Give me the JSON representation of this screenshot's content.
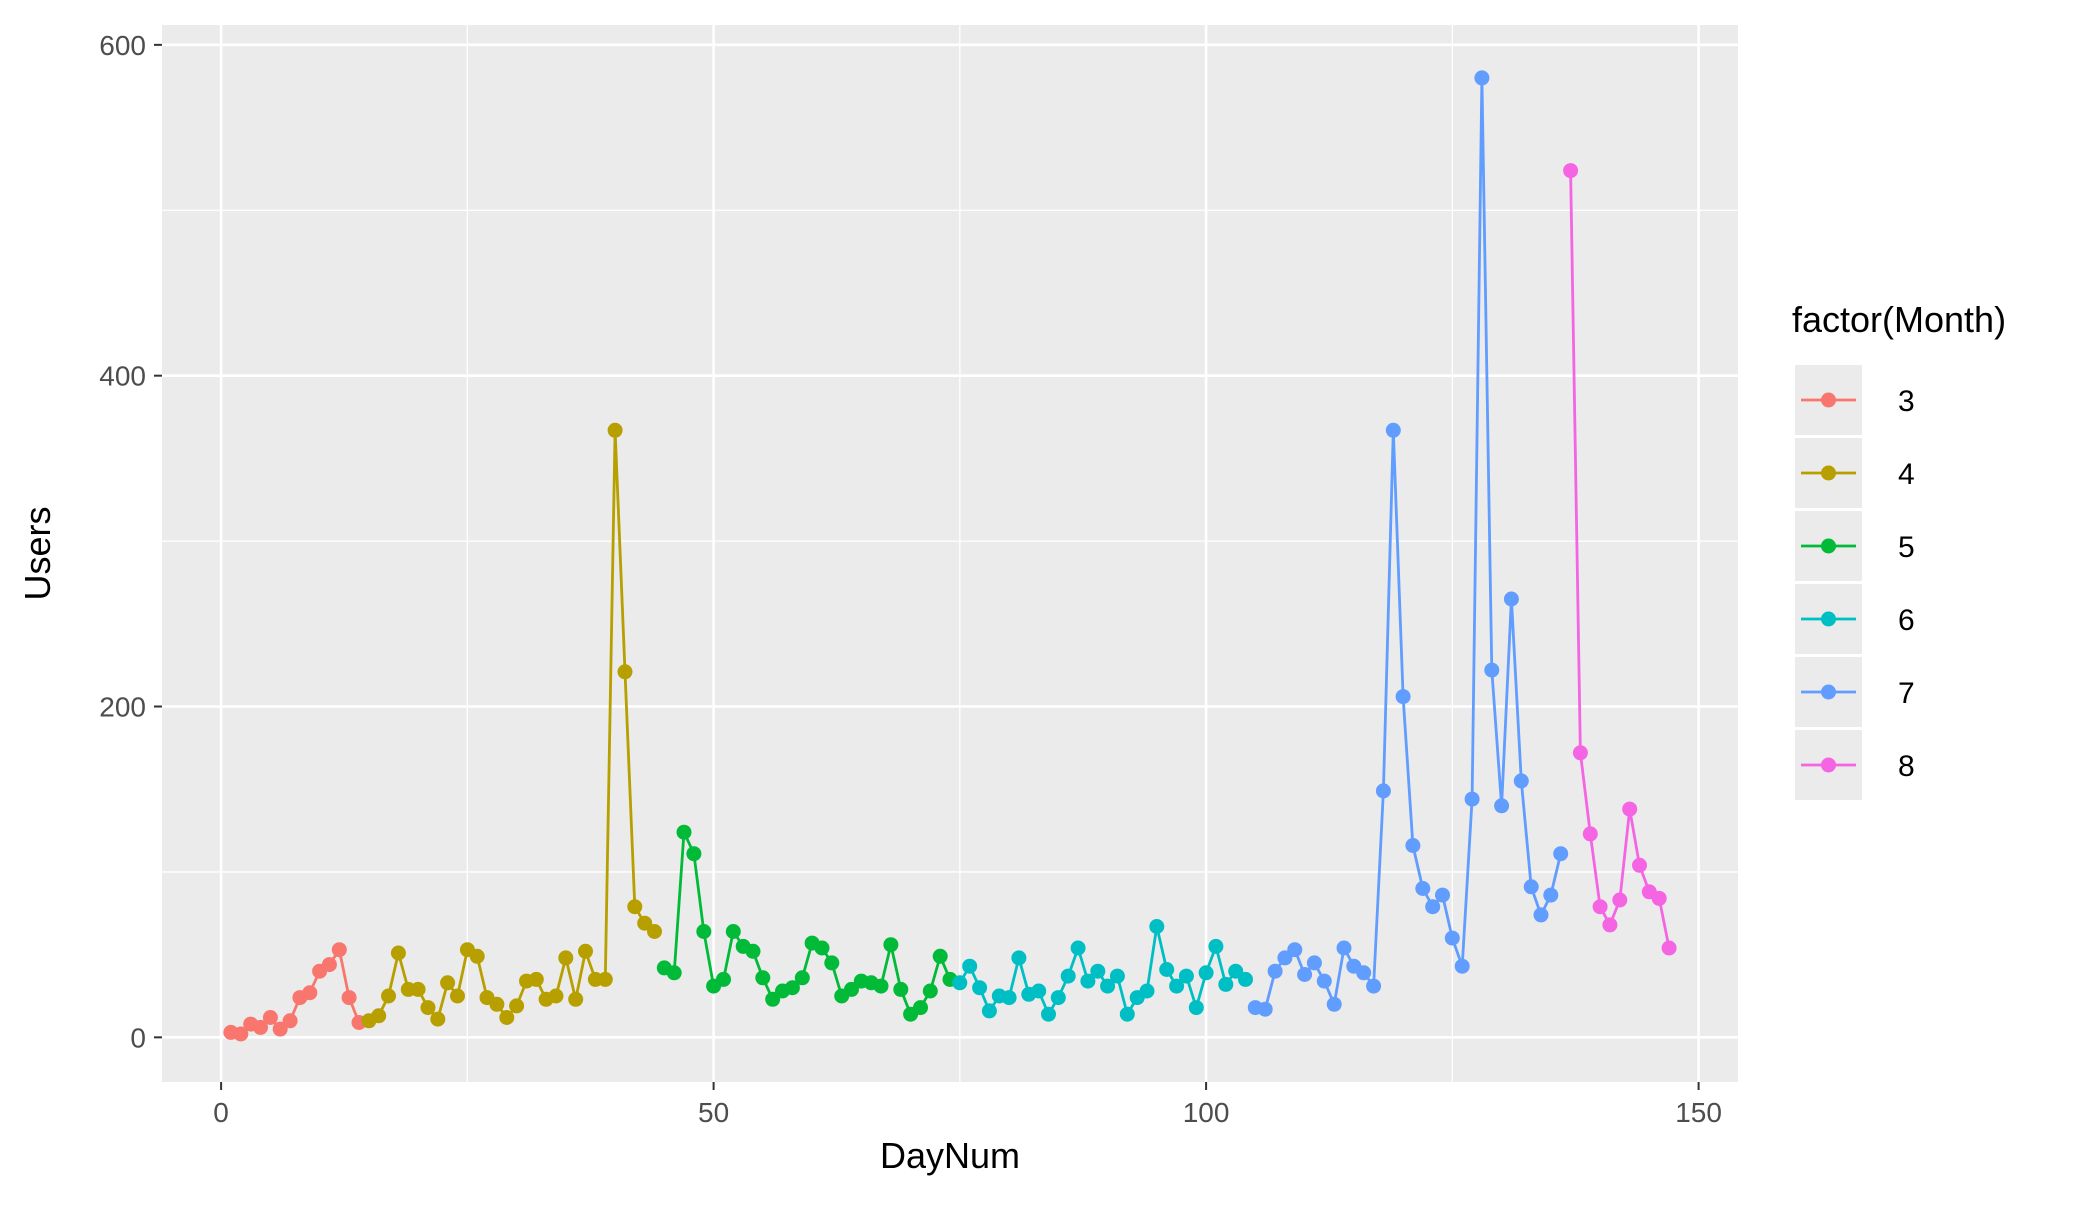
{
  "chart_data": {
    "type": "line",
    "xlabel": "DayNum",
    "ylabel": "Users",
    "xlim": [
      -6,
      154
    ],
    "ylim": [
      -27,
      612
    ],
    "x_ticks": [
      0,
      50,
      100,
      150
    ],
    "y_ticks": [
      0,
      200,
      400,
      600
    ],
    "grid": true,
    "background": "#ebebeb",
    "legend": {
      "title": "factor(Month)",
      "position": "right"
    },
    "series": [
      {
        "name": "3",
        "color": "#F8766D",
        "points": [
          [
            1,
            3
          ],
          [
            2,
            2
          ],
          [
            3,
            8
          ],
          [
            4,
            6
          ],
          [
            5,
            12
          ],
          [
            6,
            5
          ],
          [
            7,
            10
          ],
          [
            8,
            24
          ],
          [
            9,
            27
          ],
          [
            10,
            40
          ],
          [
            11,
            44
          ],
          [
            12,
            53
          ],
          [
            13,
            24
          ],
          [
            14,
            9
          ]
        ]
      },
      {
        "name": "4",
        "color": "#B79F00",
        "points": [
          [
            15,
            10
          ],
          [
            16,
            13
          ],
          [
            17,
            25
          ],
          [
            18,
            51
          ],
          [
            19,
            29
          ],
          [
            20,
            29
          ],
          [
            21,
            18
          ],
          [
            22,
            11
          ],
          [
            23,
            33
          ],
          [
            24,
            25
          ],
          [
            25,
            53
          ],
          [
            26,
            49
          ],
          [
            27,
            24
          ],
          [
            28,
            20
          ],
          [
            29,
            12
          ],
          [
            30,
            19
          ],
          [
            31,
            34
          ],
          [
            32,
            35
          ],
          [
            33,
            23
          ],
          [
            34,
            25
          ],
          [
            35,
            48
          ],
          [
            36,
            23
          ],
          [
            37,
            52
          ],
          [
            38,
            35
          ],
          [
            39,
            35
          ],
          [
            40,
            367
          ],
          [
            41,
            221
          ],
          [
            42,
            79
          ],
          [
            43,
            69
          ],
          [
            44,
            64
          ]
        ]
      },
      {
        "name": "5",
        "color": "#00BA38",
        "points": [
          [
            45,
            42
          ],
          [
            46,
            39
          ],
          [
            47,
            124
          ],
          [
            48,
            111
          ],
          [
            49,
            64
          ],
          [
            50,
            31
          ],
          [
            51,
            35
          ],
          [
            52,
            64
          ],
          [
            53,
            55
          ],
          [
            54,
            52
          ],
          [
            55,
            36
          ],
          [
            56,
            23
          ],
          [
            57,
            28
          ],
          [
            58,
            30
          ],
          [
            59,
            36
          ],
          [
            60,
            57
          ],
          [
            61,
            54
          ],
          [
            62,
            45
          ],
          [
            63,
            25
          ],
          [
            64,
            29
          ],
          [
            65,
            34
          ],
          [
            66,
            33
          ],
          [
            67,
            31
          ],
          [
            68,
            56
          ],
          [
            69,
            29
          ],
          [
            70,
            14
          ],
          [
            71,
            18
          ],
          [
            72,
            28
          ],
          [
            73,
            49
          ],
          [
            74,
            35
          ]
        ]
      },
      {
        "name": "6",
        "color": "#00BFC4",
        "points": [
          [
            75,
            33
          ],
          [
            76,
            43
          ],
          [
            77,
            30
          ],
          [
            78,
            16
          ],
          [
            79,
            25
          ],
          [
            80,
            24
          ],
          [
            81,
            48
          ],
          [
            82,
            26
          ],
          [
            83,
            28
          ],
          [
            84,
            14
          ],
          [
            85,
            24
          ],
          [
            86,
            37
          ],
          [
            87,
            54
          ],
          [
            88,
            34
          ],
          [
            89,
            40
          ],
          [
            90,
            31
          ],
          [
            91,
            37
          ],
          [
            92,
            14
          ],
          [
            93,
            24
          ],
          [
            94,
            28
          ],
          [
            95,
            67
          ],
          [
            96,
            41
          ],
          [
            97,
            31
          ],
          [
            98,
            37
          ],
          [
            99,
            18
          ],
          [
            100,
            39
          ],
          [
            101,
            55
          ],
          [
            102,
            32
          ],
          [
            103,
            40
          ],
          [
            104,
            35
          ]
        ]
      },
      {
        "name": "7",
        "color": "#619CFF",
        "points": [
          [
            105,
            18
          ],
          [
            106,
            17
          ],
          [
            107,
            40
          ],
          [
            108,
            48
          ],
          [
            109,
            53
          ],
          [
            110,
            38
          ],
          [
            111,
            45
          ],
          [
            112,
            34
          ],
          [
            113,
            20
          ],
          [
            114,
            54
          ],
          [
            115,
            43
          ],
          [
            116,
            39
          ],
          [
            117,
            31
          ],
          [
            118,
            149
          ],
          [
            119,
            367
          ],
          [
            120,
            206
          ],
          [
            121,
            116
          ],
          [
            122,
            90
          ],
          [
            123,
            79
          ],
          [
            124,
            86
          ],
          [
            125,
            60
          ],
          [
            126,
            43
          ],
          [
            127,
            144
          ],
          [
            128,
            580
          ],
          [
            129,
            222
          ],
          [
            130,
            140
          ],
          [
            131,
            265
          ],
          [
            132,
            155
          ],
          [
            133,
            91
          ],
          [
            134,
            74
          ],
          [
            135,
            86
          ],
          [
            136,
            111
          ]
        ]
      },
      {
        "name": "8",
        "color": "#F564E3",
        "points": [
          [
            137,
            524
          ],
          [
            138,
            172
          ],
          [
            139,
            123
          ],
          [
            140,
            79
          ],
          [
            141,
            68
          ],
          [
            142,
            83
          ],
          [
            143,
            138
          ],
          [
            144,
            104
          ],
          [
            145,
            88
          ],
          [
            146,
            84
          ],
          [
            147,
            54
          ]
        ]
      }
    ]
  }
}
